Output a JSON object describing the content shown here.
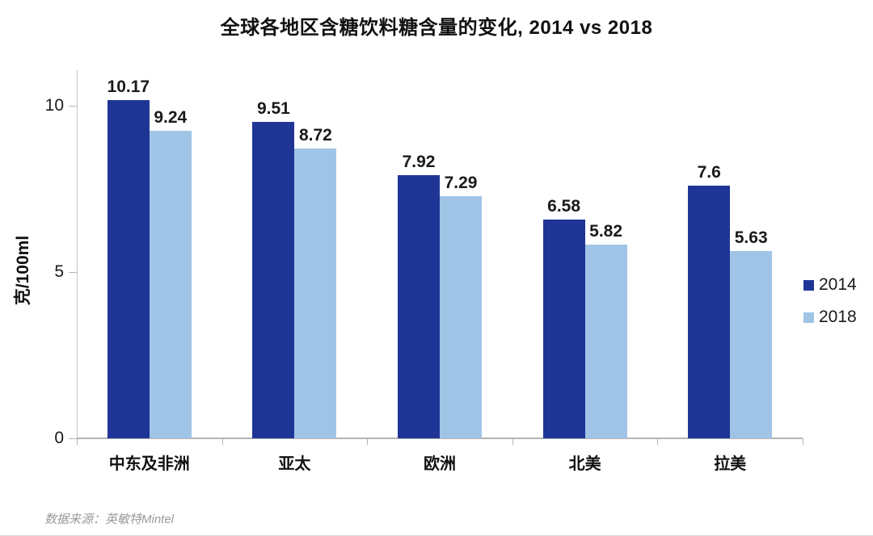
{
  "title": "全球各地区含糖饮料糖含量的变化, 2014 vs 2018",
  "chart_data": {
    "type": "bar",
    "title": "全球各地区含糖饮料糖含量的变化, 2014 vs 2018",
    "xlabel": "",
    "ylabel": "克/100ml",
    "categories": [
      "中东及非洲",
      "亚太",
      "欧洲",
      "北美",
      "拉美"
    ],
    "series": [
      {
        "name": "2014",
        "color": "#1f3596",
        "values": [
          10.17,
          9.51,
          7.92,
          6.58,
          7.6
        ]
      },
      {
        "name": "2018",
        "color": "#a0c4e6",
        "values": [
          9.24,
          8.72,
          7.29,
          5.82,
          5.63
        ]
      }
    ],
    "ylim": [
      0,
      11
    ],
    "yticks": [
      0,
      5,
      10
    ],
    "grid": false,
    "data_labels": true,
    "legend_position": "right"
  },
  "legend": {
    "items": [
      {
        "label": "2014",
        "color": "#1f3596"
      },
      {
        "label": "2018",
        "color": "#a0c4e6"
      }
    ]
  },
  "source": "数据来源：英敏特Mintel",
  "colors": {
    "series_2014": "#1f3596",
    "series_2018": "#a0c4e6",
    "axis": "#b3b3b3",
    "text": "#1a1a1a",
    "source_text": "#9a9a9a",
    "background": "#ffffff"
  }
}
